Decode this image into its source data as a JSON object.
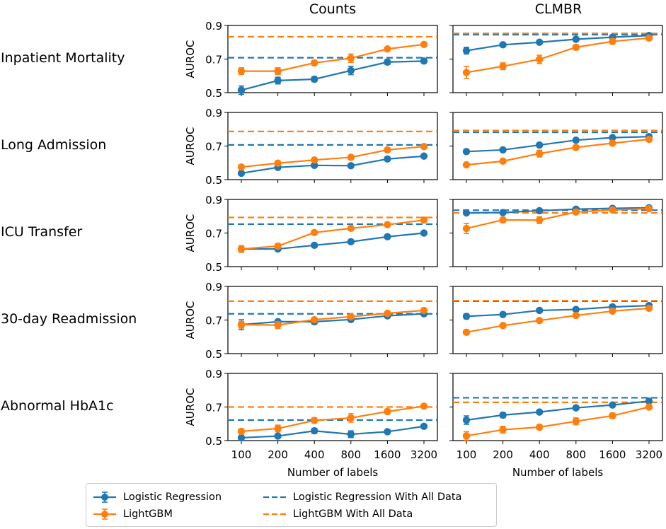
{
  "figure": {
    "column_titles": [
      "Counts",
      "CLMBR"
    ],
    "row_titles": [
      "Inpatient Mortality",
      "Long Admission",
      "ICU Transfer",
      "30-day Readmission",
      "Abnormal HbA1c"
    ]
  },
  "legend": {
    "items": [
      {
        "label": "Logistic Regression",
        "style": "solid-marker",
        "color": "#1f77b4"
      },
      {
        "label": "LightGBM",
        "style": "solid-marker",
        "color": "#ff7f0e"
      },
      {
        "label": "Logistic Regression With All Data",
        "style": "dashed",
        "color": "#1f77b4"
      },
      {
        "label": "LightGBM With All Data",
        "style": "dashed",
        "color": "#ff7f0e"
      }
    ]
  },
  "colors": {
    "logistic_regression": "#1f77b4",
    "lightgbm": "#ff7f0e"
  },
  "chart_data": [
    {
      "type": "line",
      "title": "Counts",
      "row": "Inpatient Mortality",
      "xlabel": "Number of labels",
      "ylabel": "AUROC",
      "x": [
        "100",
        "200",
        "400",
        "800",
        "1600",
        "3200"
      ],
      "ylim": [
        0.5,
        0.9
      ],
      "yticks": [
        "0.5",
        "0.7",
        "0.9"
      ],
      "series": [
        {
          "name": "Logistic Regression",
          "values": [
            0.515,
            0.572,
            0.58,
            0.632,
            0.682,
            0.688
          ],
          "err": [
            0.025,
            0.02,
            0.015,
            0.025,
            0.015,
            0.01
          ]
        },
        {
          "name": "LightGBM",
          "values": [
            0.628,
            0.628,
            0.677,
            0.705,
            0.76,
            0.787
          ],
          "err": [
            0.02,
            0.02,
            0.015,
            0.025,
            0.01,
            0.01
          ]
        }
      ],
      "reference_lines": [
        {
          "name": "Logistic Regression With All Data",
          "value": 0.708
        },
        {
          "name": "LightGBM With All Data",
          "value": 0.833
        }
      ]
    },
    {
      "type": "line",
      "title": "CLMBR",
      "row": "Inpatient Mortality",
      "xlabel": "Number of labels",
      "ylabel": "",
      "x": [
        "100",
        "200",
        "400",
        "800",
        "1600",
        "3200"
      ],
      "ylim": [
        0.5,
        0.9
      ],
      "series": [
        {
          "name": "Logistic Regression",
          "values": [
            0.75,
            0.785,
            0.8,
            0.818,
            0.83,
            0.84
          ],
          "err": [
            0.02,
            0.01,
            0.01,
            0.01,
            0.01,
            0.01
          ]
        },
        {
          "name": "LightGBM",
          "values": [
            0.62,
            0.657,
            0.698,
            0.77,
            0.805,
            0.825
          ],
          "err": [
            0.035,
            0.02,
            0.025,
            0.015,
            0.015,
            0.01
          ]
        }
      ],
      "reference_lines": [
        {
          "name": "Logistic Regression With All Data",
          "value": 0.845
        },
        {
          "name": "LightGBM With All Data",
          "value": 0.853
        }
      ]
    },
    {
      "type": "line",
      "title": "Counts",
      "row": "Long Admission",
      "xlabel": "Number of labels",
      "ylabel": "AUROC",
      "x": [
        "100",
        "200",
        "400",
        "800",
        "1600",
        "3200"
      ],
      "ylim": [
        0.5,
        0.9
      ],
      "yticks": [
        "0.5",
        "0.7",
        "0.9"
      ],
      "series": [
        {
          "name": "Logistic Regression",
          "values": [
            0.538,
            0.573,
            0.585,
            0.583,
            0.623,
            0.64
          ],
          "err": [
            0.01,
            0.01,
            0.01,
            0.01,
            0.01,
            0.01
          ]
        },
        {
          "name": "LightGBM",
          "values": [
            0.575,
            0.598,
            0.617,
            0.633,
            0.677,
            0.697
          ],
          "err": [
            0.01,
            0.01,
            0.01,
            0.01,
            0.01,
            0.01
          ]
        }
      ],
      "reference_lines": [
        {
          "name": "Logistic Regression With All Data",
          "value": 0.707
        },
        {
          "name": "LightGBM With All Data",
          "value": 0.787
        }
      ]
    },
    {
      "type": "line",
      "title": "CLMBR",
      "row": "Long Admission",
      "xlabel": "Number of labels",
      "ylabel": "",
      "x": [
        "100",
        "200",
        "400",
        "800",
        "1600",
        "3200"
      ],
      "ylim": [
        0.5,
        0.9
      ],
      "series": [
        {
          "name": "Logistic Regression",
          "values": [
            0.667,
            0.677,
            0.706,
            0.735,
            0.75,
            0.756
          ],
          "err": [
            0.01,
            0.01,
            0.01,
            0.01,
            0.01,
            0.01
          ]
        },
        {
          "name": "LightGBM",
          "values": [
            0.588,
            0.61,
            0.655,
            0.692,
            0.717,
            0.74
          ],
          "err": [
            0.01,
            0.01,
            0.02,
            0.01,
            0.01,
            0.01
          ]
        }
      ],
      "reference_lines": [
        {
          "name": "Logistic Regression With All Data",
          "value": 0.782
        },
        {
          "name": "LightGBM With All Data",
          "value": 0.793
        }
      ]
    },
    {
      "type": "line",
      "title": "Counts",
      "row": "ICU Transfer",
      "xlabel": "Number of labels",
      "ylabel": "AUROC",
      "x": [
        "100",
        "200",
        "400",
        "800",
        "1600",
        "3200"
      ],
      "ylim": [
        0.5,
        0.9
      ],
      "yticks": [
        "0.5",
        "0.7",
        "0.9"
      ],
      "series": [
        {
          "name": "Logistic Regression",
          "values": [
            0.605,
            0.605,
            0.627,
            0.648,
            0.678,
            0.7
          ],
          "err": [
            0.01,
            0.01,
            0.01,
            0.01,
            0.01,
            0.01
          ]
        },
        {
          "name": "LightGBM",
          "values": [
            0.605,
            0.622,
            0.703,
            0.728,
            0.75,
            0.777
          ],
          "err": [
            0.02,
            0.015,
            0.01,
            0.01,
            0.01,
            0.01
          ]
        }
      ],
      "reference_lines": [
        {
          "name": "Logistic Regression With All Data",
          "value": 0.753
        },
        {
          "name": "LightGBM With All Data",
          "value": 0.793
        }
      ]
    },
    {
      "type": "line",
      "title": "CLMBR",
      "row": "ICU Transfer",
      "xlabel": "Number of labels",
      "ylabel": "",
      "x": [
        "100",
        "200",
        "400",
        "800",
        "1600",
        "3200"
      ],
      "ylim": [
        0.5,
        0.9
      ],
      "series": [
        {
          "name": "Logistic Regression",
          "values": [
            0.82,
            0.822,
            0.833,
            0.842,
            0.847,
            0.85
          ],
          "err": [
            0.01,
            0.01,
            0.01,
            0.01,
            0.01,
            0.01
          ]
        },
        {
          "name": "LightGBM",
          "values": [
            0.727,
            0.778,
            0.777,
            0.825,
            0.838,
            0.845
          ],
          "err": [
            0.03,
            0.015,
            0.02,
            0.01,
            0.01,
            0.01
          ]
        }
      ],
      "reference_lines": [
        {
          "name": "Logistic Regression With All Data",
          "value": 0.836
        },
        {
          "name": "LightGBM With All Data",
          "value": 0.82
        }
      ]
    },
    {
      "type": "line",
      "title": "Counts",
      "row": "30-day Readmission",
      "xlabel": "Number of labels",
      "ylabel": "AUROC",
      "x": [
        "100",
        "200",
        "400",
        "800",
        "1600",
        "3200"
      ],
      "ylim": [
        0.5,
        0.9
      ],
      "yticks": [
        "0.5",
        "0.7",
        "0.9"
      ],
      "series": [
        {
          "name": "Logistic Regression",
          "values": [
            0.672,
            0.69,
            0.69,
            0.703,
            0.725,
            0.737
          ],
          "err": [
            0.03,
            0.01,
            0.015,
            0.01,
            0.01,
            0.01
          ]
        },
        {
          "name": "LightGBM",
          "values": [
            0.672,
            0.67,
            0.702,
            0.72,
            0.74,
            0.757
          ],
          "err": [
            0.02,
            0.02,
            0.01,
            0.01,
            0.01,
            0.01
          ]
        }
      ],
      "reference_lines": [
        {
          "name": "Logistic Regression With All Data",
          "value": 0.737
        },
        {
          "name": "LightGBM With All Data",
          "value": 0.812
        }
      ]
    },
    {
      "type": "line",
      "title": "CLMBR",
      "row": "30-day Readmission",
      "xlabel": "Number of labels",
      "ylabel": "",
      "x": [
        "100",
        "200",
        "400",
        "800",
        "1600",
        "3200"
      ],
      "ylim": [
        0.5,
        0.9
      ],
      "series": [
        {
          "name": "Logistic Regression",
          "values": [
            0.722,
            0.733,
            0.757,
            0.763,
            0.778,
            0.786
          ],
          "err": [
            0.015,
            0.01,
            0.01,
            0.01,
            0.01,
            0.01
          ]
        },
        {
          "name": "LightGBM",
          "values": [
            0.627,
            0.667,
            0.697,
            0.727,
            0.753,
            0.77
          ],
          "err": [
            0.015,
            0.01,
            0.01,
            0.01,
            0.01,
            0.01
          ]
        }
      ],
      "reference_lines": [
        {
          "name": "Logistic Regression With All Data",
          "value": 0.812
        },
        {
          "name": "LightGBM With All Data",
          "value": 0.815
        }
      ]
    },
    {
      "type": "line",
      "title": "Counts",
      "row": "Abnormal HbA1c",
      "xlabel": "Number of labels",
      "ylabel": "AUROC",
      "x": [
        "100",
        "200",
        "400",
        "800",
        "1600",
        "3200"
      ],
      "ylim": [
        0.5,
        0.9
      ],
      "yticks": [
        "0.5",
        "0.7",
        "0.9"
      ],
      "xticks_visible": true,
      "series": [
        {
          "name": "Logistic Regression",
          "values": [
            0.517,
            0.527,
            0.558,
            0.538,
            0.553,
            0.585
          ],
          "err": [
            0.01,
            0.01,
            0.015,
            0.02,
            0.01,
            0.01
          ]
        },
        {
          "name": "LightGBM",
          "values": [
            0.555,
            0.572,
            0.62,
            0.635,
            0.673,
            0.705
          ],
          "err": [
            0.015,
            0.02,
            0.015,
            0.025,
            0.015,
            0.01
          ]
        }
      ],
      "reference_lines": [
        {
          "name": "Logistic Regression With All Data",
          "value": 0.622
        },
        {
          "name": "LightGBM With All Data",
          "value": 0.7
        }
      ]
    },
    {
      "type": "line",
      "title": "CLMBR",
      "row": "Abnormal HbA1c",
      "xlabel": "Number of labels",
      "ylabel": "",
      "x": [
        "100",
        "200",
        "400",
        "800",
        "1600",
        "3200"
      ],
      "ylim": [
        0.5,
        0.9
      ],
      "xticks_visible": true,
      "series": [
        {
          "name": "Logistic Regression",
          "values": [
            0.622,
            0.652,
            0.67,
            0.695,
            0.712,
            0.735
          ],
          "err": [
            0.025,
            0.015,
            0.01,
            0.01,
            0.01,
            0.01
          ]
        },
        {
          "name": "LightGBM",
          "values": [
            0.528,
            0.565,
            0.58,
            0.615,
            0.648,
            0.7
          ],
          "err": [
            0.025,
            0.02,
            0.015,
            0.02,
            0.015,
            0.01
          ]
        }
      ],
      "reference_lines": [
        {
          "name": "Logistic Regression With All Data",
          "value": 0.755
        },
        {
          "name": "LightGBM With All Data",
          "value": 0.728
        }
      ]
    }
  ]
}
